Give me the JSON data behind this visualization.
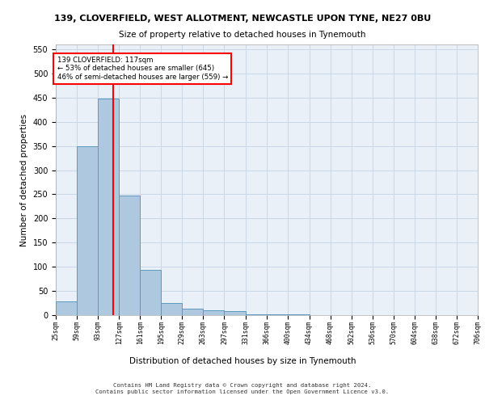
{
  "title1": "139, CLOVERFIELD, WEST ALLOTMENT, NEWCASTLE UPON TYNE, NE27 0BU",
  "title2": "Size of property relative to detached houses in Tynemouth",
  "xlabel": "Distribution of detached houses by size in Tynemouth",
  "ylabel": "Number of detached properties",
  "bin_edges": [
    25,
    59,
    93,
    127,
    161,
    195,
    229,
    263,
    297,
    331,
    366,
    400,
    434,
    468,
    502,
    536,
    570,
    604,
    638,
    672,
    706
  ],
  "bar_heights": [
    28,
    350,
    448,
    248,
    93,
    25,
    14,
    10,
    8,
    2,
    1,
    1,
    0,
    0,
    0,
    0,
    0,
    0,
    0,
    0
  ],
  "bar_color": "#aec8e0",
  "bar_edge_color": "#5a9abe",
  "vline_x": 117,
  "vline_color": "red",
  "annotation_text": "139 CLOVERFIELD: 117sqm\n← 53% of detached houses are smaller (645)\n46% of semi-detached houses are larger (559) →",
  "annotation_box_color": "white",
  "annotation_box_edge": "red",
  "ylim": [
    0,
    560
  ],
  "yticks": [
    0,
    50,
    100,
    150,
    200,
    250,
    300,
    350,
    400,
    450,
    500,
    550
  ],
  "grid_color": "#c8d8e8",
  "background_color": "#eaf0f8",
  "footer1": "Contains HM Land Registry data © Crown copyright and database right 2024.",
  "footer2": "Contains public sector information licensed under the Open Government Licence v3.0."
}
